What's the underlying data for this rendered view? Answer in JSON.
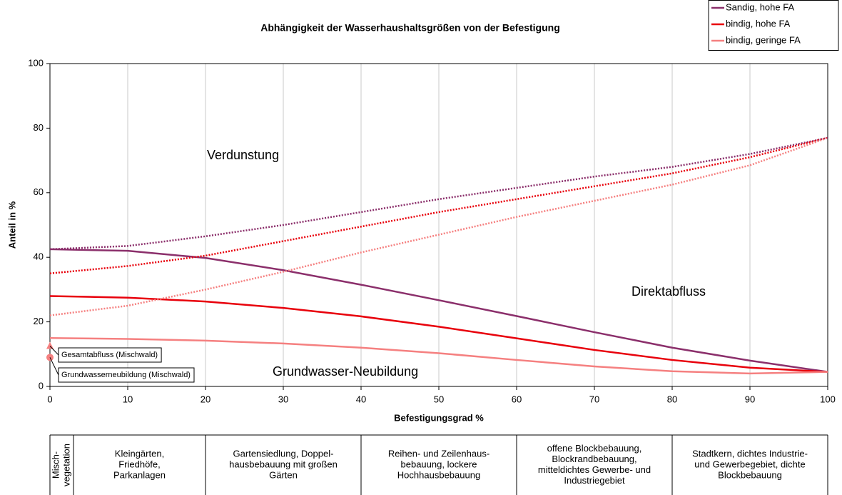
{
  "chart_data": {
    "type": "line",
    "title": "Abhängigkeit der Wasserhaushaltsgrößen von der Befestigung",
    "x_label": "Befestigungsgrad %",
    "y_label": "Anteil in %",
    "x": [
      0,
      10,
      20,
      30,
      40,
      50,
      60,
      70,
      80,
      90,
      100
    ],
    "xlim": [
      0,
      100
    ],
    "xticks": [
      0,
      10,
      20,
      30,
      40,
      50,
      60,
      70,
      80,
      90,
      100
    ],
    "ylim": [
      0,
      100
    ],
    "yticks": [
      0,
      20,
      40,
      60,
      80,
      100
    ],
    "grid": true,
    "legend": "top-right",
    "series": [
      {
        "name": "Sandig, hohe FA",
        "color": "#8b2f6b",
        "values": [
          42.5,
          42,
          39.8,
          36,
          31.5,
          26.7,
          21.8,
          16.8,
          12,
          8,
          4.5
        ],
        "evaporation_values": [
          42.5,
          43.5,
          46.5,
          50,
          54,
          58,
          61.5,
          65,
          68,
          72,
          77
        ]
      },
      {
        "name": "bindig, hohe FA",
        "color": "#e8000b",
        "values": [
          28,
          27.5,
          26.3,
          24.3,
          21.7,
          18.5,
          14.9,
          11.3,
          8.2,
          5.8,
          4.5
        ],
        "evaporation_values": [
          35,
          37.3,
          40.5,
          45,
          49.5,
          54,
          58,
          62,
          66,
          71,
          77
        ]
      },
      {
        "name": "bindig, geringe FA",
        "color": "#f58080",
        "values": [
          15,
          14.7,
          14.2,
          13.3,
          12,
          10.3,
          8.2,
          6.2,
          4.7,
          4,
          4.5
        ],
        "evaporation_values": [
          22,
          25,
          30,
          35.5,
          41.5,
          47,
          52.5,
          57.5,
          62.5,
          68.5,
          77
        ]
      }
    ],
    "annotations": [
      "Verdunstung",
      "Direktabfluss",
      "Grundwasser-Neubildung"
    ],
    "markers": [
      {
        "label": "Gesamtabfluss (Mischwald)",
        "x": 0,
        "value": 12.5,
        "shape": "triangle",
        "color": "#f58080"
      },
      {
        "label": "Grundwasserneubildung (Mischwald)",
        "x": 0,
        "value": 9,
        "shape": "circle",
        "color": "#f58080"
      }
    ],
    "land_use": [
      {
        "lines": [
          "Misch-",
          "vegetation"
        ]
      },
      {
        "lines": [
          "Kleingärten,",
          "Friedhöfe,",
          "Parkanlagen"
        ]
      },
      {
        "lines": [
          "Gartensiedlung, Doppel-",
          "hausbebauung mit großen",
          "Gärten"
        ]
      },
      {
        "lines": [
          "Reihen- und Zeilenhaus-",
          "bebauung, lockere",
          "Hochhausbebauung"
        ]
      },
      {
        "lines": [
          "offene Blockbebauung,",
          "Blockrandbebauung,",
          "mitteldichtes Gewerbe- und",
          "Industriegebiet"
        ]
      },
      {
        "lines": [
          "Stadtkern, dichtes Industrie-",
          "und Gewerbegebiet, dichte",
          "Blockbebauung"
        ]
      }
    ]
  }
}
